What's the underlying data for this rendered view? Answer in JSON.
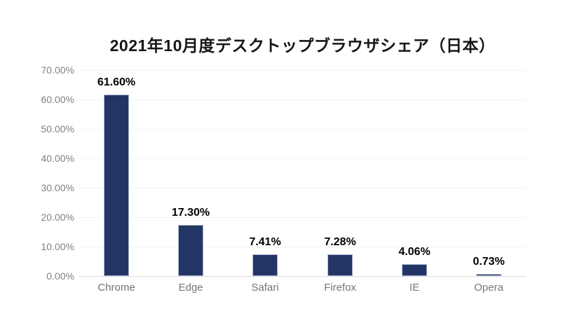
{
  "chart_data": {
    "type": "bar",
    "title": "2021年10月度デスクトップブラウザシェア（日本）",
    "categories": [
      "Chrome",
      "Edge",
      "Safari",
      "Firefox",
      "IE",
      "Opera"
    ],
    "values": [
      61.6,
      17.3,
      7.41,
      7.28,
      4.06,
      0.73
    ],
    "data_labels": [
      "61.60%",
      "17.30%",
      "7.41%",
      "7.28%",
      "4.06%",
      "0.73%"
    ],
    "xlabel": "",
    "ylabel": "",
    "ylim": [
      0,
      70
    ],
    "ytick_step": 10,
    "ytick_labels_top_to_bottom": [
      "70.00%",
      "60.00%",
      "50.00%",
      "40.00%",
      "30.00%",
      "20.00%",
      "10.00%",
      "0.00%"
    ],
    "grid": "horizontal",
    "legend": "none",
    "colors": {
      "bar_fill": "#233564",
      "bar_border": "#a9b4cf",
      "gridline": "#f2f2f2",
      "axis_line": "#d9d9d9",
      "tick_label": "#808080",
      "category_label": "#757575",
      "data_label": "#000000",
      "title": "#161616",
      "background": "#ffffff"
    }
  }
}
